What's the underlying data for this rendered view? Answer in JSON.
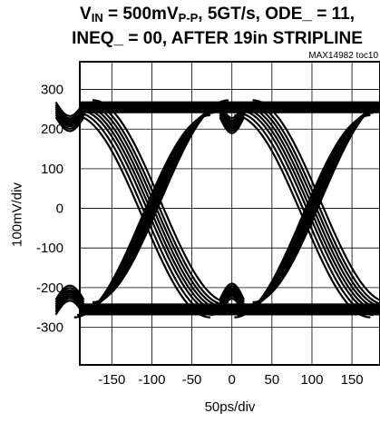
{
  "chart_data": {
    "type": "line",
    "title_line1_main": "V",
    "title_line1_sub": "IN",
    "title_line1_mid": " = 500mV",
    "title_line1_sub2": "P-P",
    "title_line1_rest": ", 5GT/s, ODE_ = 11,",
    "title_line2": "INEQ_ = 00, AFTER 19in STRIPLINE",
    "figure_id": "MAX14982 toc10",
    "xlabel": "50ps/div",
    "ylabel": "100mV/div",
    "x_ticks": [
      -150,
      -100,
      -50,
      0,
      50,
      100,
      150
    ],
    "y_ticks": [
      300,
      200,
      100,
      0,
      -100,
      -200,
      -300
    ],
    "xlim": [
      -190,
      185
    ],
    "ylim": [
      -395,
      370
    ],
    "grid": true,
    "eye_diagram": {
      "crossings_x": [
        -100,
        100
      ],
      "rail_high_center": 255,
      "rail_low_center": -255,
      "rail_thickness": 30,
      "trace_offsets": [
        -20,
        -14,
        -8,
        -3,
        2,
        7,
        12,
        18
      ]
    },
    "colors": {
      "trace": "#000000",
      "grid": "#000000",
      "background": "#ffffff"
    }
  }
}
